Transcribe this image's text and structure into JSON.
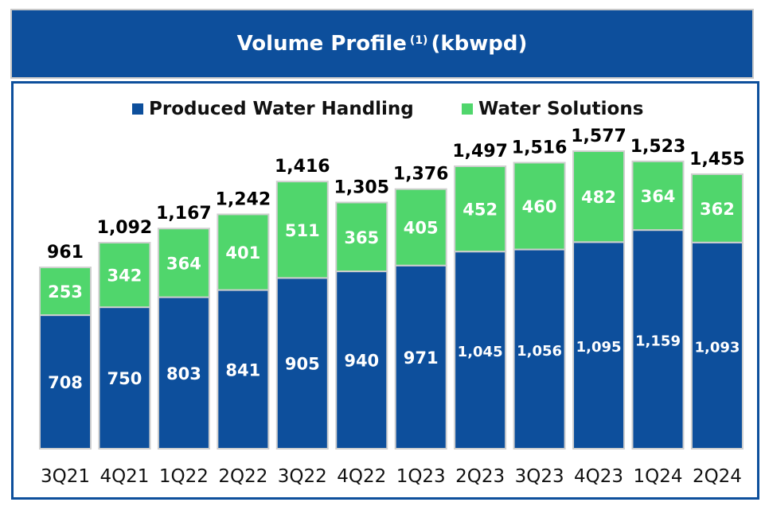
{
  "title": {
    "main": "Volume Profile",
    "footnote": "(1)",
    "unit": "(kbwpd)"
  },
  "colors": {
    "title_bg": "#0d4f9c",
    "produced": "#0d4f9c",
    "solutions": "#50d66c"
  },
  "chart_data": {
    "type": "bar",
    "stacked": true,
    "categories": [
      "3Q21",
      "4Q21",
      "1Q22",
      "2Q22",
      "3Q22",
      "4Q22",
      "1Q23",
      "2Q23",
      "3Q23",
      "4Q23",
      "1Q24",
      "2Q24"
    ],
    "series": [
      {
        "name": "Produced Water Handling",
        "values": [
          708,
          750,
          803,
          841,
          905,
          940,
          971,
          1045,
          1056,
          1095,
          1159,
          1093
        ]
      },
      {
        "name": "Water Solutions",
        "values": [
          253,
          342,
          364,
          401,
          511,
          365,
          405,
          452,
          460,
          482,
          364,
          362
        ]
      }
    ],
    "value_labels": {
      "produced": [
        "708",
        "750",
        "803",
        "841",
        "905",
        "940",
        "971",
        "1,045",
        "1,056",
        "1,095",
        "1,159",
        "1,093"
      ],
      "solutions": [
        "253",
        "342",
        "364",
        "401",
        "511",
        "365",
        "405",
        "452",
        "460",
        "482",
        "364",
        "362"
      ],
      "totals": [
        "961",
        "1,092",
        "1,167",
        "1,242",
        "1,416",
        "1,305",
        "1,376",
        "1,497",
        "1,516",
        "1,577",
        "1,523",
        "1,455"
      ]
    },
    "legend": [
      "Produced Water Handling",
      "Water Solutions"
    ],
    "legend_position": "top",
    "ylim": [
      0,
      1577
    ],
    "grid": false
  }
}
